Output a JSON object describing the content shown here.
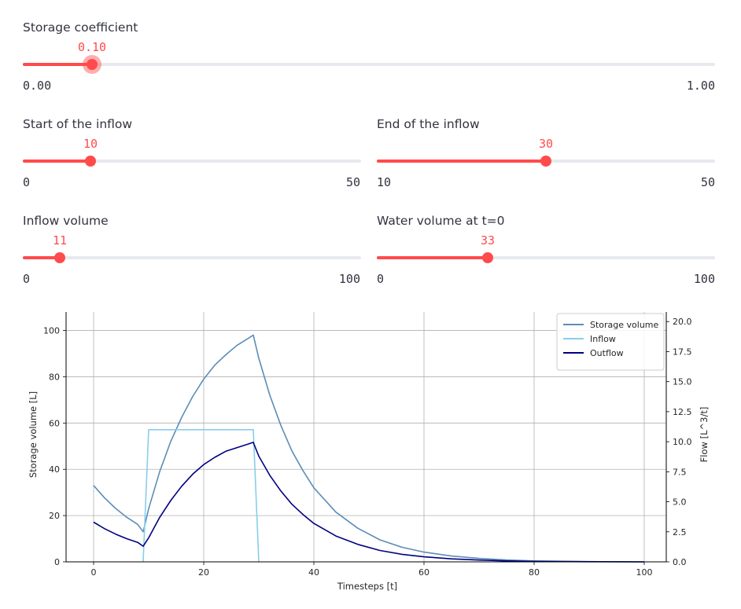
{
  "sliders": {
    "storage": {
      "label": "Storage coefficient",
      "value": "0.10",
      "min": "0.00",
      "max": "1.00",
      "fraction": 0.1
    },
    "start": {
      "label": "Start of the inflow",
      "value": "10",
      "min": "0",
      "max": "50",
      "fraction": 0.2
    },
    "end": {
      "label": "End of the inflow",
      "value": "30",
      "min": "10",
      "max": "50",
      "fraction": 0.5
    },
    "inflow": {
      "label": "Inflow volume",
      "value": "11",
      "min": "0",
      "max": "100",
      "fraction": 0.11
    },
    "water": {
      "label": "Water volume at t=0",
      "value": "33",
      "min": "0",
      "max": "100",
      "fraction": 0.33
    }
  },
  "colors": {
    "accent": "#ff4b4b",
    "track": "#e6e9ef"
  },
  "chart_data": {
    "type": "line",
    "xlabel": "Timesteps [t]",
    "ylabel": "Storage volume [L]",
    "y2label": "Flow [L^3/t]",
    "xlim": [
      -5,
      104
    ],
    "ylim": [
      0,
      108
    ],
    "y2lim": [
      0,
      20.8
    ],
    "xticks": [
      0,
      20,
      40,
      60,
      80,
      100
    ],
    "yticks": [
      0,
      20,
      40,
      60,
      80,
      100
    ],
    "y2ticks": [
      "0.0",
      "2.5",
      "5.0",
      "7.5",
      "10.0",
      "12.5",
      "15.0",
      "17.5",
      "20.0"
    ],
    "grid": true,
    "legend": "top-right",
    "series": [
      {
        "name": "Storage volume",
        "axis": "left",
        "color": "#5b8db8",
        "x": [
          0,
          2,
          4,
          6,
          8,
          9,
          10,
          12,
          14,
          16,
          18,
          20,
          22,
          24,
          26,
          28,
          29,
          30,
          32,
          34,
          36,
          38,
          40,
          44,
          48,
          52,
          56,
          60,
          65,
          70,
          75,
          80,
          90,
          100
        ],
        "y": [
          33,
          27.6,
          23.1,
          19.3,
          16.2,
          13,
          23,
          39,
          52,
          62.5,
          71.5,
          79,
          85,
          89.5,
          93.5,
          96.5,
          98,
          88,
          72,
          59,
          48,
          39.5,
          32,
          21.5,
          14.5,
          9.5,
          6.3,
          4.2,
          2.5,
          1.5,
          0.8,
          0.4,
          0.1,
          0
        ]
      },
      {
        "name": "Inflow",
        "axis": "right",
        "color": "#87ceeb",
        "x": [
          9,
          10,
          29,
          30
        ],
        "y": [
          0,
          11,
          11,
          0
        ]
      },
      {
        "name": "Outflow",
        "axis": "right",
        "color": "#000080",
        "x": [
          0,
          2,
          4,
          6,
          8,
          9,
          10,
          12,
          14,
          16,
          18,
          20,
          22,
          24,
          26,
          28,
          29,
          30,
          32,
          34,
          36,
          38,
          40,
          44,
          48,
          52,
          56,
          60,
          65,
          70,
          75,
          80,
          90,
          100
        ],
        "y": [
          3.3,
          2.76,
          2.31,
          1.93,
          1.62,
          1.3,
          2.0,
          3.7,
          5.1,
          6.3,
          7.3,
          8.1,
          8.7,
          9.2,
          9.5,
          9.8,
          9.95,
          8.8,
          7.2,
          5.9,
          4.8,
          3.95,
          3.2,
          2.15,
          1.45,
          0.95,
          0.63,
          0.42,
          0.25,
          0.15,
          0.08,
          0.04,
          0.01,
          0
        ]
      }
    ]
  }
}
